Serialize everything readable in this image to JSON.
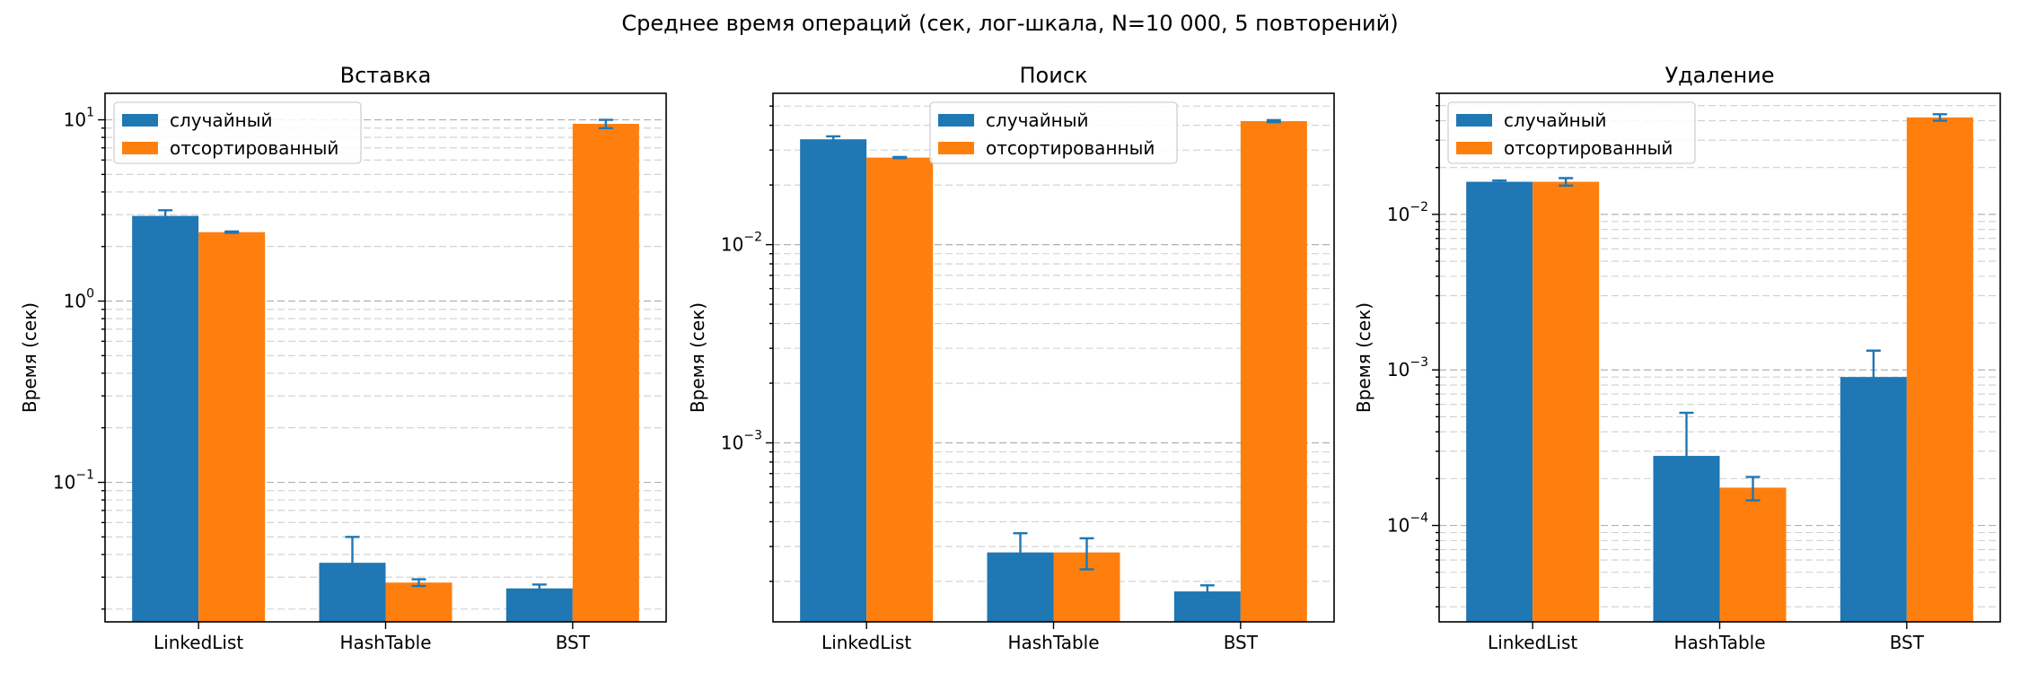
{
  "suptitle": "Среднее время операций (сек, лог-шкала, N=10 000, 5 повторений)",
  "colors": {
    "series_random": "#1f77b4",
    "series_sorted": "#ff7f0e",
    "error_bar": "#1f77b4"
  },
  "chart_data": [
    {
      "type": "bar",
      "title": "Вставка",
      "ylabel": "Время (сек)",
      "yscale": "log",
      "ylim": [
        0.017,
        14
      ],
      "categories": [
        "LinkedList",
        "HashTable",
        "BST"
      ],
      "series": [
        {
          "name": "случайный",
          "values": [
            2.95,
            0.036,
            0.026
          ],
          "errors": [
            0.22,
            0.014,
            0.0013
          ]
        },
        {
          "name": "отсортированный",
          "values": [
            2.4,
            0.028,
            9.5
          ],
          "errors": [
            0.02,
            0.0012,
            0.5
          ]
        }
      ],
      "major_ticks": [
        {
          "value": 0.1,
          "base": "10",
          "exp": "−1"
        },
        {
          "value": 1,
          "base": "10",
          "exp": "0"
        },
        {
          "value": 10,
          "base": "10",
          "exp": "1"
        }
      ],
      "grid": true,
      "legend": "upper left"
    },
    {
      "type": "bar",
      "title": "Поиск",
      "ylabel": "Время (сек)",
      "yscale": "log",
      "ylim": [
        0.000125,
        0.058
      ],
      "categories": [
        "LinkedList",
        "HashTable",
        "BST"
      ],
      "series": [
        {
          "name": "случайный",
          "values": [
            0.034,
            0.00028,
            0.000178
          ],
          "errors": [
            0.0012,
            7e-05,
            1.3e-05
          ]
        },
        {
          "name": "отсортированный",
          "values": [
            0.0275,
            0.00028,
            0.042
          ],
          "errors": [
            0.0002,
            5e-05,
            0.0005
          ]
        }
      ],
      "major_ticks": [
        {
          "value": 0.001,
          "base": "10",
          "exp": "−3"
        },
        {
          "value": 0.01,
          "base": "10",
          "exp": "−2"
        }
      ],
      "grid": true,
      "legend": "upper center"
    },
    {
      "type": "bar",
      "title": "Удаление",
      "ylabel": "Время (сек)",
      "yscale": "log",
      "ylim": [
        2.4e-05,
        0.06
      ],
      "categories": [
        "LinkedList",
        "HashTable",
        "BST"
      ],
      "series": [
        {
          "name": "случайный",
          "values": [
            0.0162,
            0.00028,
            0.0009
          ],
          "errors": [
            0.0003,
            0.00025,
            0.00043
          ]
        },
        {
          "name": "отсортированный",
          "values": [
            0.0162,
            0.000175,
            0.042
          ],
          "errors": [
            0.0009,
            3e-05,
            0.002
          ]
        }
      ],
      "major_ticks": [
        {
          "value": 0.0001,
          "base": "10",
          "exp": "−4"
        },
        {
          "value": 0.001,
          "base": "10",
          "exp": "−3"
        },
        {
          "value": 0.01,
          "base": "10",
          "exp": "−2"
        }
      ],
      "grid": true,
      "legend": "upper left"
    }
  ]
}
